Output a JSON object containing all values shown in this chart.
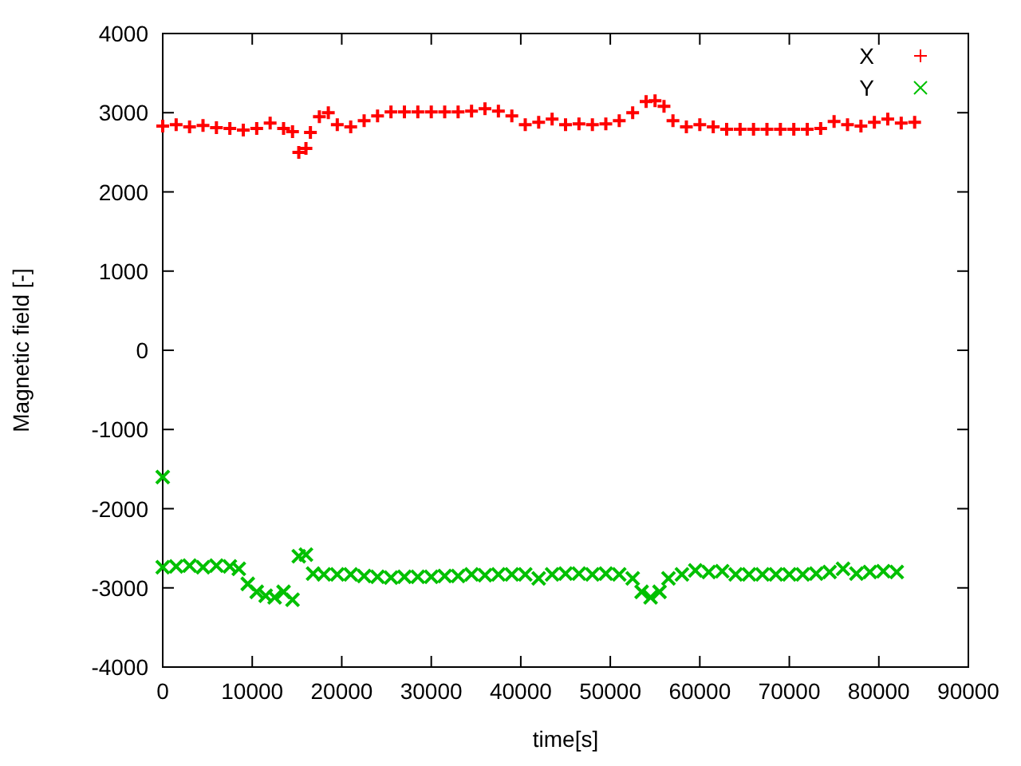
{
  "chart_data": {
    "type": "scatter",
    "xlabel": "time[s]",
    "ylabel": "Magnetic field [-]",
    "xlim": [
      0,
      90000
    ],
    "xticks": [
      0,
      10000,
      20000,
      30000,
      40000,
      50000,
      60000,
      70000,
      80000,
      90000
    ],
    "ylim": [
      -4000,
      4000
    ],
    "yticks": [
      -4000,
      -3000,
      -2000,
      -1000,
      0,
      1000,
      2000,
      3000,
      4000
    ],
    "grid": false,
    "legend": "top right",
    "marker": "cross",
    "series": [
      {
        "name": "X",
        "color": "#ff0000",
        "x": [
          0,
          1500,
          3000,
          4500,
          6000,
          7500,
          9000,
          10500,
          12000,
          13500,
          14500,
          15200,
          16000,
          16500,
          17500,
          18500,
          19500,
          21000,
          22500,
          24000,
          25500,
          27000,
          28500,
          30000,
          31500,
          33000,
          34500,
          36000,
          37500,
          39000,
          40500,
          42000,
          43500,
          45000,
          46500,
          48000,
          49500,
          51000,
          52500,
          54000,
          55000,
          56000,
          57000,
          58500,
          60000,
          61500,
          63000,
          64500,
          66000,
          67500,
          69000,
          70500,
          72000,
          73500,
          75000,
          76500,
          78000,
          79500,
          81000,
          82500,
          84000
        ],
        "values": [
          2830,
          2850,
          2820,
          2840,
          2810,
          2800,
          2780,
          2800,
          2870,
          2800,
          2760,
          2500,
          2550,
          2750,
          2950,
          3000,
          2850,
          2820,
          2900,
          2960,
          3010,
          3010,
          3010,
          3010,
          3010,
          3010,
          3020,
          3050,
          3020,
          2960,
          2850,
          2880,
          2920,
          2850,
          2860,
          2850,
          2860,
          2900,
          3000,
          3140,
          3150,
          3080,
          2900,
          2820,
          2850,
          2820,
          2790,
          2790,
          2790,
          2790,
          2790,
          2790,
          2790,
          2800,
          2890,
          2850,
          2830,
          2880,
          2920,
          2870,
          2880
        ]
      },
      {
        "name": "Y",
        "color": "#00c000",
        "x": [
          0,
          0,
          1500,
          3000,
          4500,
          6000,
          7500,
          8500,
          9500,
          10500,
          11500,
          12500,
          13500,
          14500,
          15200,
          16000,
          16800,
          18000,
          19500,
          21000,
          22500,
          24000,
          25500,
          27000,
          28500,
          30000,
          31500,
          33000,
          34500,
          36000,
          37500,
          39000,
          40500,
          42000,
          43500,
          45000,
          46500,
          48000,
          49500,
          51000,
          52500,
          53500,
          54500,
          55500,
          56500,
          58000,
          59500,
          61000,
          62500,
          64000,
          65500,
          67000,
          68500,
          70000,
          71500,
          73000,
          74500,
          76000,
          77500,
          79000,
          80500,
          82000
        ],
        "values": [
          -1600,
          -2740,
          -2730,
          -2720,
          -2740,
          -2720,
          -2730,
          -2760,
          -2950,
          -3050,
          -3100,
          -3120,
          -3050,
          -3150,
          -2600,
          -2580,
          -2820,
          -2830,
          -2830,
          -2830,
          -2850,
          -2860,
          -2870,
          -2860,
          -2860,
          -2860,
          -2850,
          -2850,
          -2830,
          -2840,
          -2830,
          -2830,
          -2830,
          -2880,
          -2830,
          -2820,
          -2820,
          -2830,
          -2820,
          -2830,
          -2880,
          -3050,
          -3120,
          -3050,
          -2880,
          -2830,
          -2780,
          -2800,
          -2790,
          -2830,
          -2830,
          -2830,
          -2830,
          -2830,
          -2830,
          -2820,
          -2800,
          -2760,
          -2820,
          -2800,
          -2790,
          -2800
        ]
      }
    ]
  }
}
